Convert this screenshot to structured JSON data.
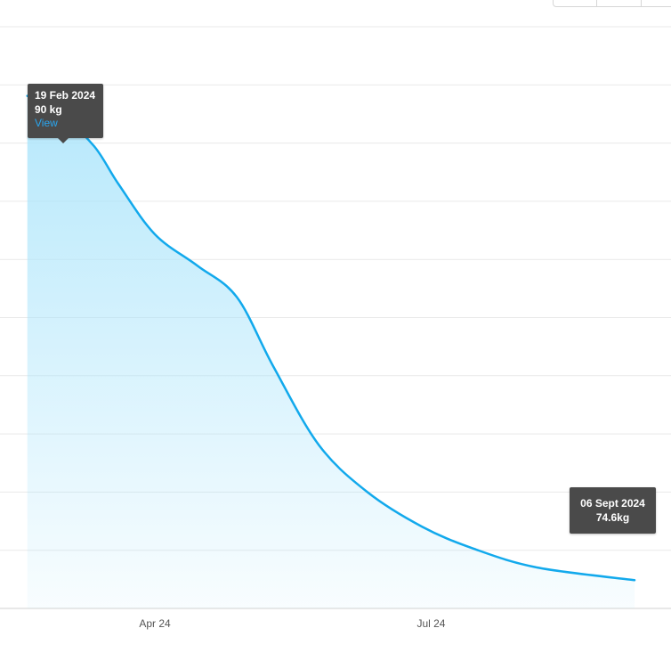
{
  "toolbar": {
    "buttons": [
      "",
      "",
      ""
    ]
  },
  "chart_data": {
    "type": "area",
    "x": [
      "2024-02-19",
      "2024-03-01",
      "2024-03-12",
      "2024-03-20",
      "2024-04-01",
      "2024-04-15",
      "2024-04-28",
      "2024-05-10",
      "2024-05-25",
      "2024-06-10",
      "2024-06-28",
      "2024-07-15",
      "2024-08-05",
      "2024-09-06"
    ],
    "values": [
      90,
      89.4,
      88.4,
      87.2,
      85.6,
      84.6,
      83.6,
      81.4,
      78.9,
      77.4,
      76.3,
      75.6,
      75.0,
      74.6
    ],
    "xticks": [
      "Apr 24",
      "Jul 24"
    ],
    "xlim": [
      "2024-02-10",
      "2024-09-18"
    ],
    "ylim": [
      73.7,
      92.2
    ],
    "grid": true,
    "line_color": "#12a9ec",
    "fill_color": "#a9e4fb"
  },
  "tooltip_start": {
    "date": "19 Feb 2024",
    "value": "90 kg",
    "link": "View"
  },
  "tooltip_end": {
    "date": "06 Sept 2024",
    "value": "74.6kg"
  }
}
